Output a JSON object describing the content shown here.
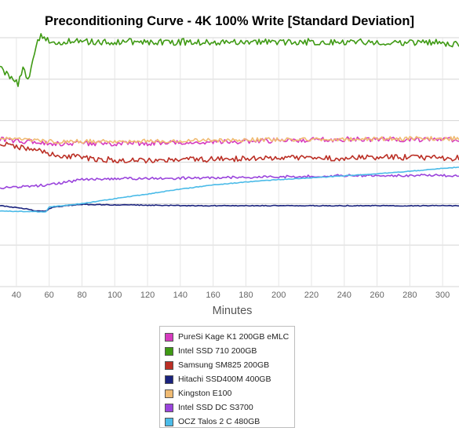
{
  "chart_data": {
    "type": "line",
    "title": "Preconditioning Curve - 4K 100% Write [Standard Deviation]",
    "xlabel": "Minutes",
    "ylabel": "",
    "xlim": [
      30,
      310
    ],
    "ylim": [
      0,
      6
    ],
    "x_ticks": [
      40,
      60,
      80,
      100,
      120,
      140,
      160,
      180,
      200,
      220,
      240,
      260,
      280,
      300
    ],
    "grid": true,
    "legend_position": "bottom-center",
    "series": [
      {
        "name": "PureSi Kage K1 200GB eMLC",
        "color": "#d63bbf",
        "points": [
          [
            30,
            3.55
          ],
          [
            60,
            3.45
          ],
          [
            100,
            3.45
          ],
          [
            150,
            3.47
          ],
          [
            200,
            3.52
          ],
          [
            240,
            3.55
          ],
          [
            280,
            3.55
          ],
          [
            310,
            3.55
          ]
        ],
        "noise": 0.06
      },
      {
        "name": "Intel SSD 710 200GB",
        "color": "#3f9a14",
        "points": [
          [
            30,
            5.35
          ],
          [
            33,
            5.15
          ],
          [
            38,
            5.0
          ],
          [
            41,
            4.9
          ],
          [
            44,
            5.3
          ],
          [
            47,
            4.95
          ],
          [
            50,
            5.5
          ],
          [
            53,
            5.95
          ],
          [
            56,
            6.05
          ],
          [
            60,
            5.9
          ],
          [
            100,
            5.9
          ],
          [
            150,
            5.9
          ],
          [
            200,
            5.9
          ],
          [
            250,
            5.9
          ],
          [
            300,
            5.88
          ],
          [
            310,
            5.85
          ]
        ],
        "noise": 0.08
      },
      {
        "name": "Samsung SM825 200GB",
        "color": "#bb2f25",
        "points": [
          [
            30,
            3.45
          ],
          [
            50,
            3.3
          ],
          [
            60,
            3.2
          ],
          [
            80,
            3.1
          ],
          [
            100,
            3.05
          ],
          [
            140,
            3.05
          ],
          [
            200,
            3.1
          ],
          [
            240,
            3.1
          ],
          [
            280,
            3.12
          ],
          [
            310,
            3.1
          ]
        ],
        "noise": 0.07
      },
      {
        "name": "Hitachi SSD400M 400GB",
        "color": "#1a237e",
        "points": [
          [
            30,
            1.95
          ],
          [
            45,
            1.88
          ],
          [
            52,
            1.82
          ],
          [
            58,
            1.82
          ],
          [
            62,
            1.92
          ],
          [
            80,
            1.98
          ],
          [
            150,
            1.95
          ],
          [
            310,
            1.95
          ]
        ],
        "noise": 0.01
      },
      {
        "name": "Kingston E100",
        "color": "#f0bb73",
        "points": [
          [
            30,
            3.57
          ],
          [
            60,
            3.5
          ],
          [
            100,
            3.5
          ],
          [
            150,
            3.52
          ],
          [
            200,
            3.55
          ],
          [
            240,
            3.55
          ],
          [
            280,
            3.57
          ],
          [
            310,
            3.57
          ]
        ],
        "noise": 0.05
      },
      {
        "name": "Intel SSD DC S3700",
        "color": "#9a44dc",
        "points": [
          [
            30,
            2.38
          ],
          [
            60,
            2.45
          ],
          [
            80,
            2.58
          ],
          [
            100,
            2.6
          ],
          [
            150,
            2.62
          ],
          [
            200,
            2.65
          ],
          [
            250,
            2.68
          ],
          [
            310,
            2.68
          ]
        ],
        "noise": 0.03
      },
      {
        "name": "OCZ Talos 2 C 480GB",
        "color": "#4bbbe8",
        "points": [
          [
            30,
            1.82
          ],
          [
            58,
            1.8
          ],
          [
            60,
            1.92
          ],
          [
            80,
            2.0
          ],
          [
            100,
            2.12
          ],
          [
            120,
            2.23
          ],
          [
            140,
            2.35
          ],
          [
            160,
            2.45
          ],
          [
            180,
            2.52
          ],
          [
            200,
            2.58
          ],
          [
            220,
            2.62
          ],
          [
            240,
            2.67
          ],
          [
            260,
            2.72
          ],
          [
            280,
            2.78
          ],
          [
            300,
            2.85
          ],
          [
            310,
            2.88
          ]
        ],
        "noise": 0.008
      }
    ]
  }
}
